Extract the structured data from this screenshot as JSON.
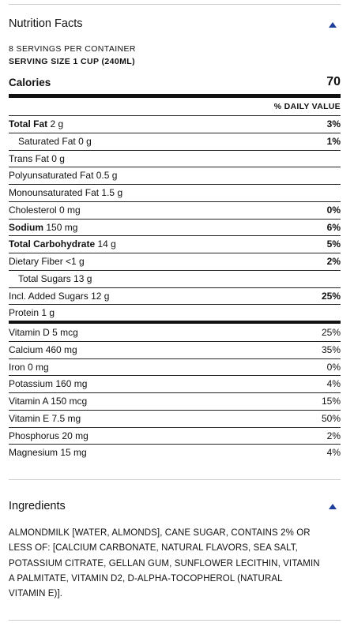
{
  "panel": {
    "title": "Nutrition Facts",
    "servings": "8 SERVINGS PER CONTAINER",
    "serving_size": "SERVING SIZE 1 CUP (240ML)",
    "calories_label": "Calories",
    "calories_value": "70",
    "daily_value_header": "% DAILY VALUE",
    "nutrients": [
      {
        "name": "Total Fat",
        "amount": "2 g",
        "dv": "3%",
        "bold": true,
        "indent": false
      },
      {
        "name": "Saturated Fat",
        "amount": "0 g",
        "dv": "1%",
        "bold": false,
        "indent": true
      },
      {
        "name": "Trans Fat",
        "amount": "0 g",
        "dv": null,
        "bold": false,
        "indent": false
      },
      {
        "name": "Polyunsaturated Fat",
        "amount": "0.5 g",
        "dv": null,
        "bold": false,
        "indent": false
      },
      {
        "name": "Monounsaturated Fat",
        "amount": "1.5 g",
        "dv": null,
        "bold": false,
        "indent": false
      },
      {
        "name": "Cholesterol",
        "amount": "0 mg",
        "dv": "0%",
        "bold": false,
        "indent": false
      },
      {
        "name": "Sodium",
        "amount": "150 mg",
        "dv": "6%",
        "bold": true,
        "indent": false
      },
      {
        "name": "Total Carbohydrate",
        "amount": "14 g",
        "dv": "5%",
        "bold": true,
        "indent": false
      },
      {
        "name": "Dietary Fiber",
        "amount": "<1 g",
        "dv": "2%",
        "bold": false,
        "indent": false
      },
      {
        "name": "Total Sugars",
        "amount": "13 g",
        "dv": null,
        "bold": false,
        "indent": true
      },
      {
        "name": "Incl. Added Sugars",
        "amount": "12 g",
        "dv": "25%",
        "bold": false,
        "indent": false
      },
      {
        "name": "Protein",
        "amount": "1 g",
        "dv": null,
        "bold": false,
        "indent": false
      }
    ],
    "vitamins": [
      {
        "name": "Vitamin D",
        "amount": "5 mcg",
        "dv": "25%"
      },
      {
        "name": "Calcium",
        "amount": "460 mg",
        "dv": "35%"
      },
      {
        "name": "Iron",
        "amount": "0 mg",
        "dv": "0%"
      },
      {
        "name": "Potassium",
        "amount": "160 mg",
        "dv": "4%"
      },
      {
        "name": "Vitamin A",
        "amount": "150 mcg",
        "dv": "15%"
      },
      {
        "name": "Vitamin E",
        "amount": "7.5 mg",
        "dv": "50%"
      },
      {
        "name": "Phosphorus",
        "amount": "20 mg",
        "dv": "2%"
      },
      {
        "name": "Magnesium",
        "amount": "15 mg",
        "dv": "4%"
      }
    ]
  },
  "ingredients": {
    "title": "Ingredients",
    "lines": [
      "ALMONDMILK [WATER, ALMONDS], CANE SUGAR, CONTAINS 2% OR",
      "LESS OF: [CALCIUM CARBONATE, NATURAL FLAVORS, SEA SALT,",
      "POTASSIUM CITRATE, GELLAN GUM, SUNFLOWER LECITHIN, VITAMIN",
      "A PALMITATE, VITAMIN D2, D-ALPHA-TOCOPHEROL (NATURAL",
      "VITAMIN E)]."
    ]
  }
}
